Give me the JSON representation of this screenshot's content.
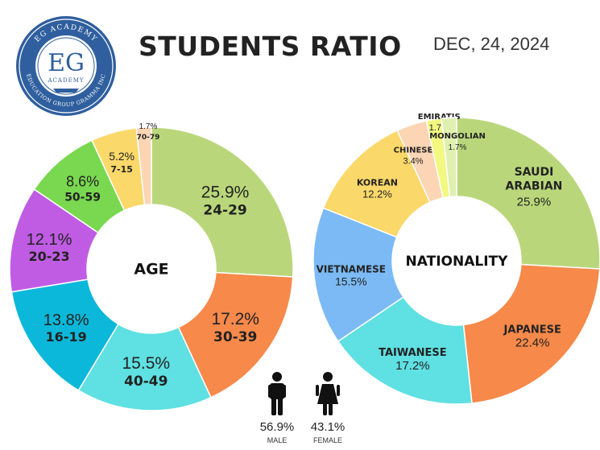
{
  "header": {
    "title": "STUDENTS RATIO",
    "date": "DEC, 24, 2024"
  },
  "logo": {
    "initials": "EG",
    "ring_top": "EG ACADEMY",
    "academy": "ACADEMY",
    "ring_bottom": "EDUCATION GROUP GRAMMA INC",
    "colors": {
      "ring": "#2f5f9e",
      "text": "#ffffff"
    }
  },
  "chart_data": [
    {
      "type": "pie",
      "name": "age",
      "center_label": "AGE",
      "slices": [
        {
          "label": "24-29",
          "value": 25.9,
          "pct": "25.9%",
          "color": "#b9d77a"
        },
        {
          "label": "30-39",
          "value": 17.2,
          "pct": "17.2%",
          "color": "#f7894a"
        },
        {
          "label": "40-49",
          "value": 15.5,
          "pct": "15.5%",
          "color": "#5fe0e2"
        },
        {
          "label": "16-19",
          "value": 13.8,
          "pct": "13.8%",
          "color": "#0bb8d9"
        },
        {
          "label": "20-23",
          "value": 12.1,
          "pct": "12.1%",
          "color": "#c05ce3"
        },
        {
          "label": "50-59",
          "value": 8.6,
          "pct": "8.6%",
          "color": "#79d84f"
        },
        {
          "label": "7-15",
          "value": 5.2,
          "pct": "5.2%",
          "color": "#fbd86a"
        },
        {
          "label": "70-79",
          "value": 1.7,
          "pct": "1.7%",
          "color": "#fbd5b4"
        }
      ]
    },
    {
      "type": "pie",
      "name": "nationality",
      "center_label": "NATIONALITY",
      "slices": [
        {
          "label": "SAUDI ARABIAN",
          "value": 25.9,
          "pct": "25.9%",
          "color": "#b9d77a"
        },
        {
          "label": "JAPANESE",
          "value": 22.4,
          "pct": "22.4%",
          "color": "#f7894a"
        },
        {
          "label": "TAIWANESE",
          "value": 17.2,
          "pct": "17.2%",
          "color": "#5fe0e2"
        },
        {
          "label": "VIETNAMESE",
          "value": 15.5,
          "pct": "15.5%",
          "color": "#7bbaf5"
        },
        {
          "label": "KOREAN",
          "value": 12.2,
          "pct": "12.2%",
          "color": "#fbd86a"
        },
        {
          "label": "CHINESE",
          "value": 3.4,
          "pct": "3.4%",
          "color": "#fbd5b4"
        },
        {
          "label": "EMIRATIS",
          "value": 1.7,
          "pct": "1.7%",
          "color": "#f2f880"
        },
        {
          "label": "MONGOLIAN",
          "value": 1.7,
          "pct": "1.7%",
          "color": "#dff0b0"
        }
      ]
    }
  ],
  "gender": {
    "male": {
      "pct": "56.9%",
      "label": "MALE"
    },
    "female": {
      "pct": "43.1%",
      "label": "FEMALE"
    }
  }
}
